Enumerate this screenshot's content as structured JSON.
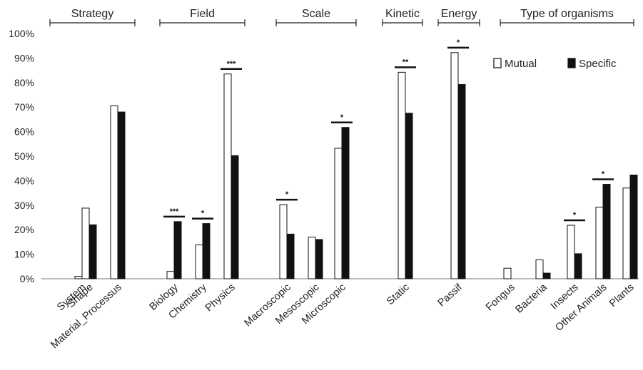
{
  "chart_data": {
    "type": "bar",
    "ylim": [
      0,
      100
    ],
    "y_ticks": [
      "0%",
      "10%",
      "20%",
      "30%",
      "40%",
      "50%",
      "60%",
      "70%",
      "80%",
      "90%",
      "100%"
    ],
    "grid": false,
    "legend_position": "top-right",
    "series": [
      {
        "name": "Mutual",
        "fill": "#ffffff",
        "stroke": "#111111"
      },
      {
        "name": "Specific",
        "fill": "#111111",
        "stroke": "#111111"
      }
    ],
    "groups": [
      {
        "title": "Strategy",
        "categories": [
          {
            "label": "System",
            "mutual": 1,
            "specific": 6,
            "significance": ""
          },
          {
            "label": "Shape",
            "mutual": 28.8,
            "specific": 22,
            "significance": ""
          },
          {
            "label": "Material_Processus",
            "mutual": 70.5,
            "specific": 68,
            "significance": ""
          }
        ]
      },
      {
        "title": "Field",
        "categories": [
          {
            "label": "Biology",
            "mutual": 3,
            "specific": 23.3,
            "significance": "***"
          },
          {
            "label": "Chemistry",
            "mutual": 13.8,
            "specific": 22.5,
            "significance": "*"
          },
          {
            "label": "Physics",
            "mutual": 83.5,
            "specific": 50.2,
            "significance": "***"
          }
        ]
      },
      {
        "title": "Scale",
        "categories": [
          {
            "label": "Macroscopic",
            "mutual": 30.2,
            "specific": 18.2,
            "significance": "*"
          },
          {
            "label": "Mesoscopic",
            "mutual": 17,
            "specific": 16,
            "significance": ""
          },
          {
            "label": "Microscopic",
            "mutual": 53.2,
            "specific": 61.7,
            "significance": "*"
          }
        ]
      },
      {
        "title": "Kinetic",
        "categories": [
          {
            "label": "Static",
            "mutual": 84.2,
            "specific": 67.5,
            "significance": "**"
          }
        ]
      },
      {
        "title": "Energy",
        "categories": [
          {
            "label": "Passif",
            "mutual": 92.2,
            "specific": 79.2,
            "significance": "*"
          }
        ]
      },
      {
        "title": "Type of organisms",
        "categories": [
          {
            "label": "Fongus",
            "mutual": 4.3,
            "specific": 0,
            "significance": ""
          },
          {
            "label": "Bacteria",
            "mutual": 7.7,
            "specific": 2.3,
            "significance": ""
          },
          {
            "label": "Insects",
            "mutual": 21.8,
            "specific": 10.2,
            "significance": "*"
          },
          {
            "label": "Other Animals",
            "mutual": 29.2,
            "specific": 38.5,
            "significance": "*"
          },
          {
            "label": "Plants",
            "mutual": 37,
            "specific": 42.3,
            "significance": ""
          }
        ]
      }
    ]
  }
}
